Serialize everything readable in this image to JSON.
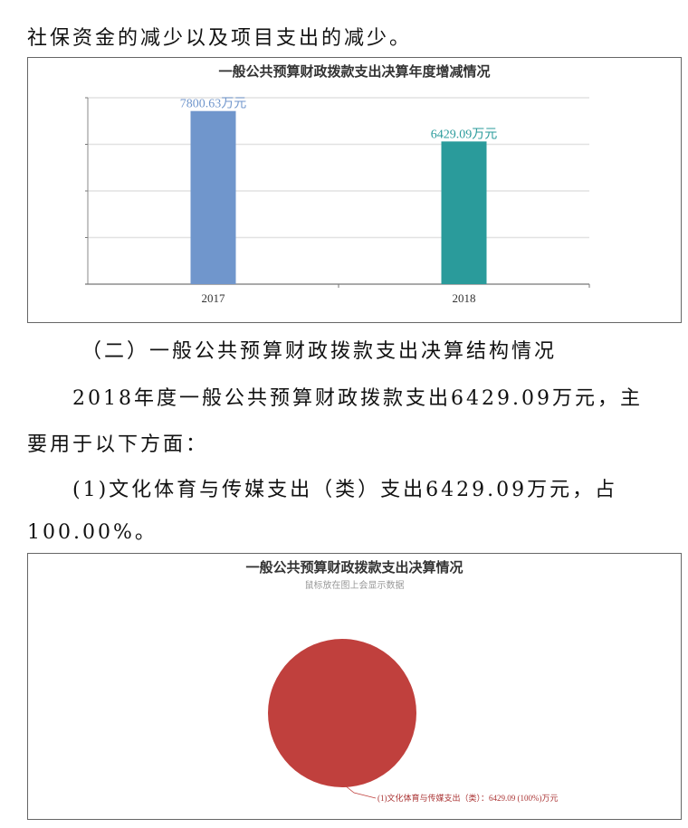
{
  "paragraphs": [
    "社保资金的减少以及项目支出的减少。",
    "（二）一般公共预算财政拨款支出决算结构情况",
    "2018年度一般公共预算财政拨款支出6429.09万元，主",
    "要用于以下方面：",
    "(1)文化体育与传媒支出（类）支出6429.09万元，占",
    "100.00%。"
  ],
  "chart_data": [
    {
      "type": "bar",
      "title": "一般公共预算财政拨款支出决算年度增减情况",
      "categories": [
        "2017",
        "2018"
      ],
      "values": [
        7800.63,
        6429.09
      ],
      "data_labels": [
        "7800.63万元",
        "6429.09万元"
      ],
      "colors": [
        "#7096cc",
        "#2a9b9b"
      ],
      "ylim": [
        0,
        8400
      ],
      "grid": true,
      "legend": "none"
    },
    {
      "type": "pie",
      "title": "一般公共预算财政拨款支出决算情况",
      "subtitle": "鼠标放在图上会显示数据",
      "slices": [
        {
          "label": "(1)文化体育与传媒支出（类）：6429.09 (100%)万元",
          "value": 6429.09,
          "percent": 100
        }
      ],
      "colors": [
        "#c0403d"
      ],
      "legend": "none"
    }
  ]
}
